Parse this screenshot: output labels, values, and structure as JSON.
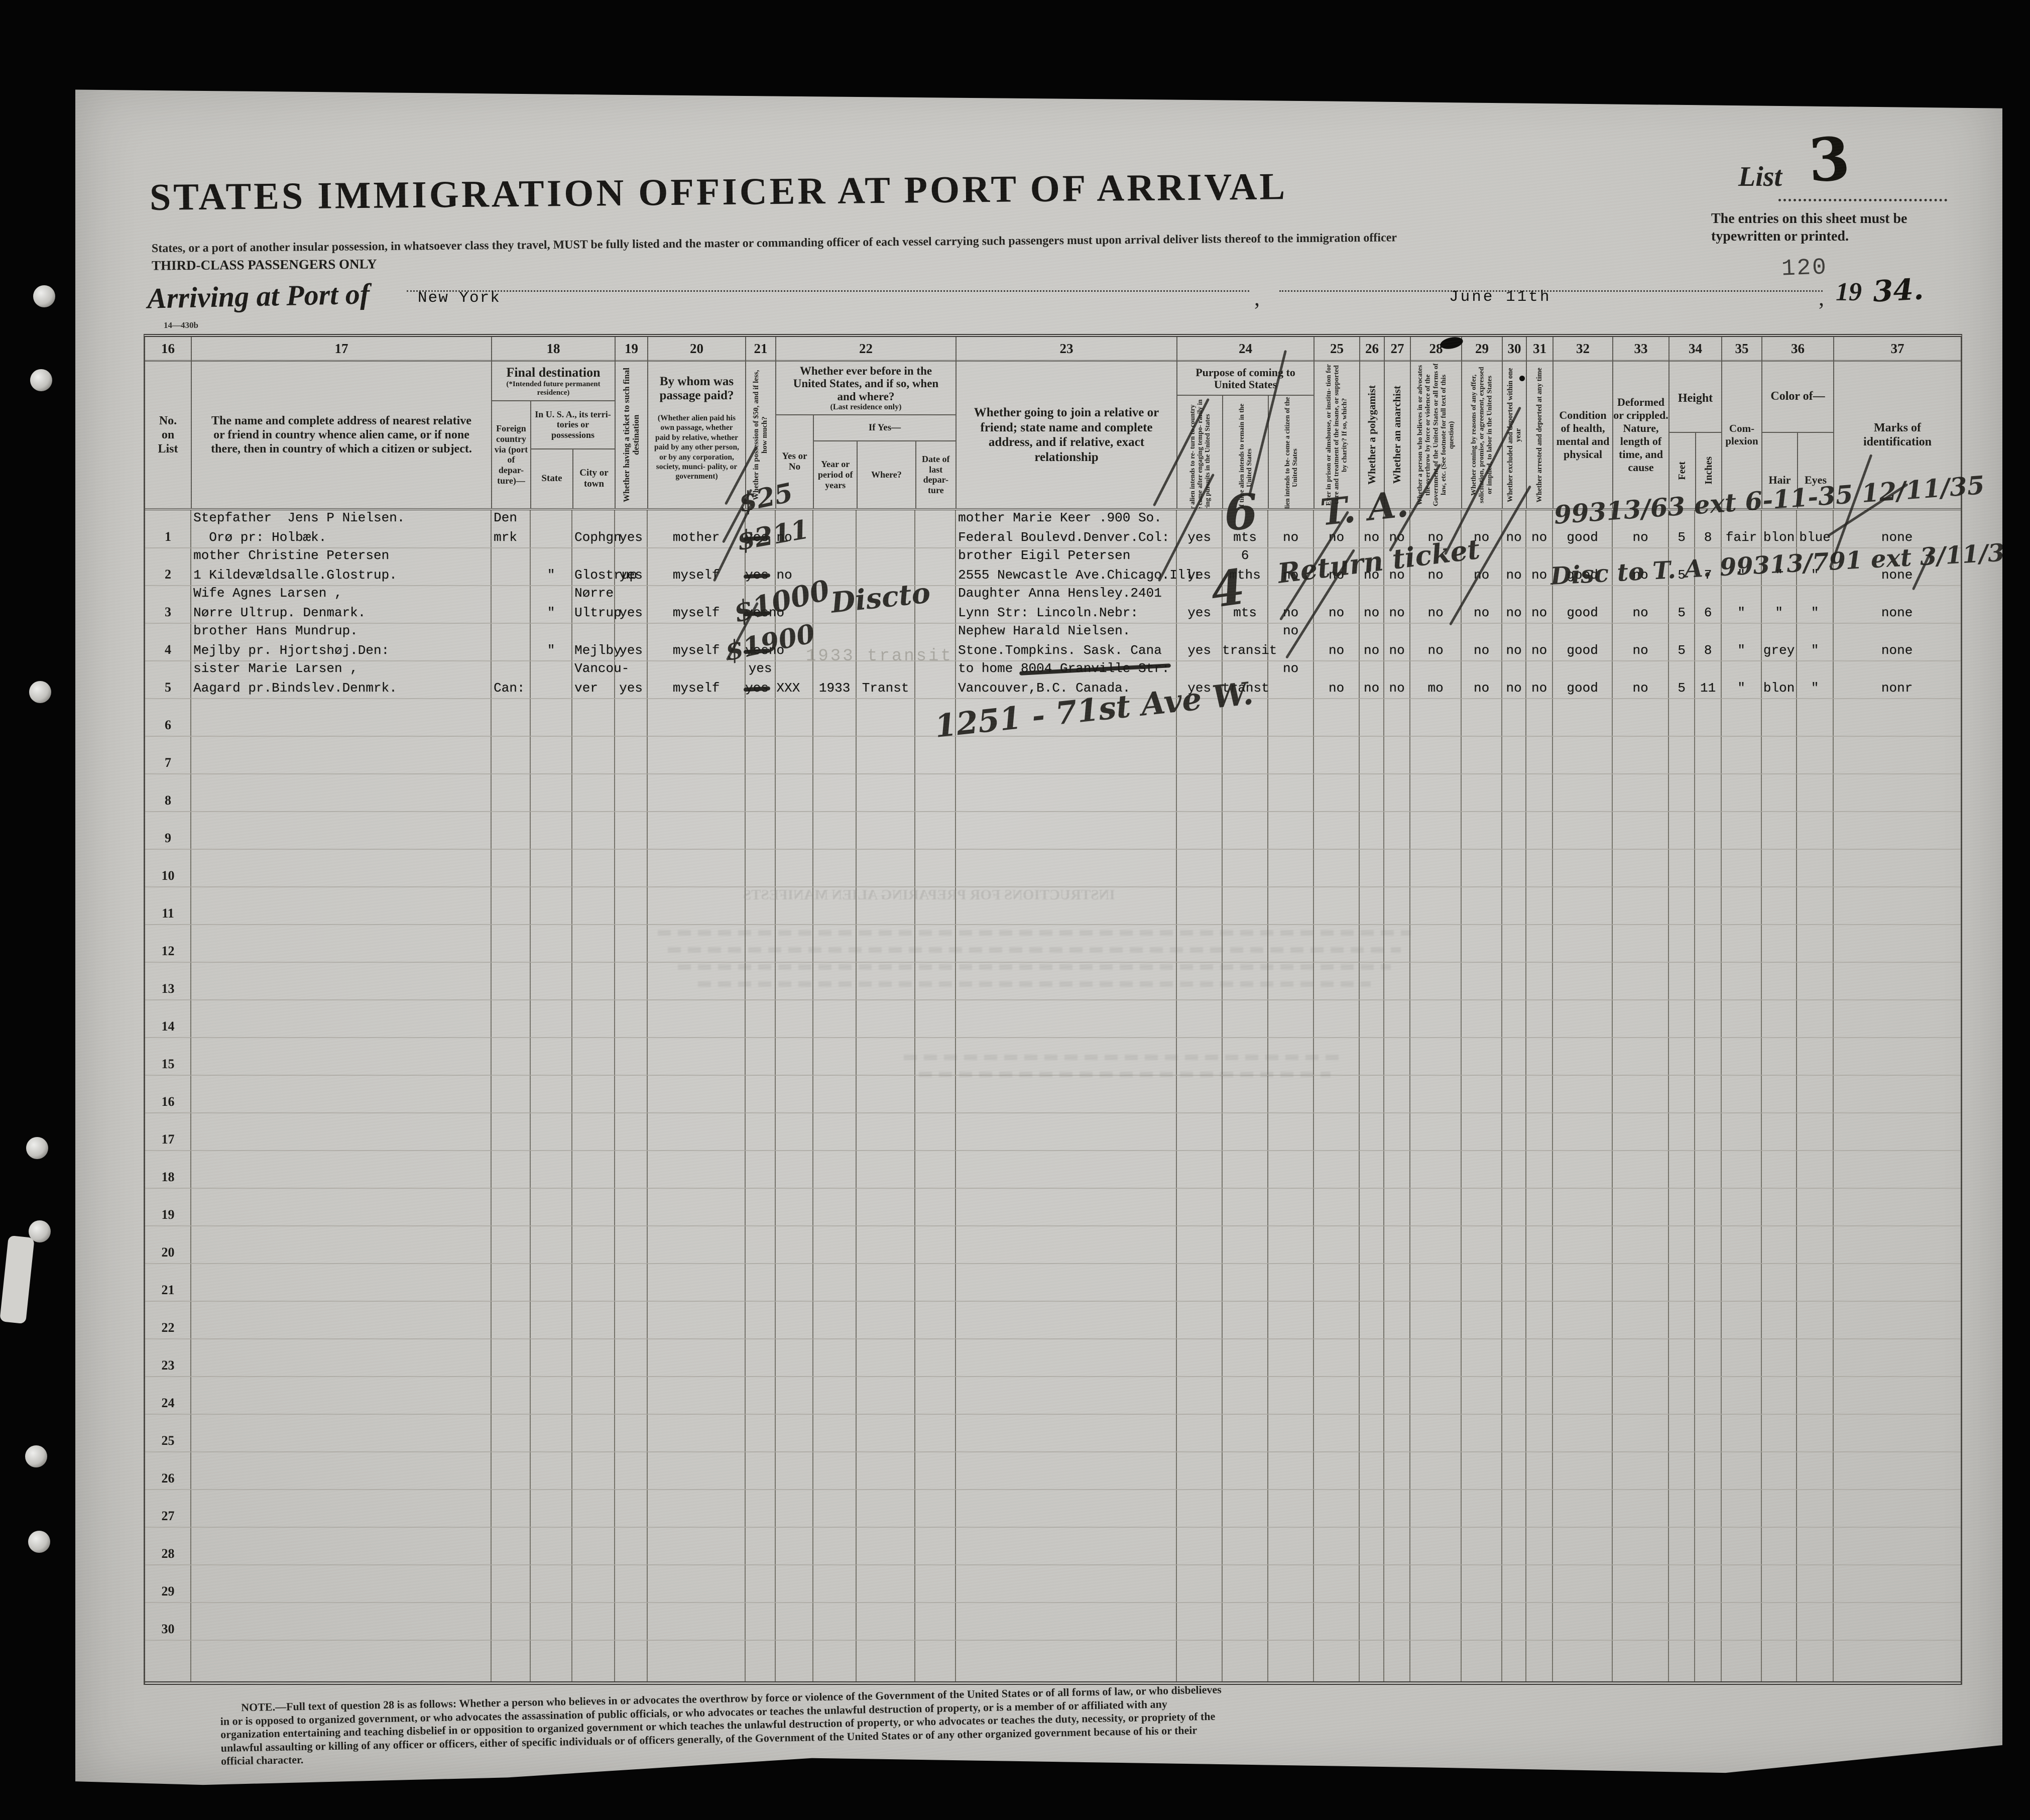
{
  "page": {
    "title": "STATES IMMIGRATION OFFICER AT PORT OF ARRIVAL",
    "subtitle": "States, or a port of another insular possession, in whatsoever class they travel, MUST be fully listed and the master or commanding officer of each vessel carrying such passengers must upon arrival deliver lists thereof to the immigration officer",
    "subtitle2": "THIRD-CLASS PASSENGERS ONLY",
    "list_label": "List",
    "list_number": "3",
    "entries_note": "The entries on this sheet must be typewritten or printed.",
    "stamp_number": "120",
    "arriving_label": "Arriving at Port of",
    "port_value": "New York",
    "date_value": "June 11th",
    "comma": ",",
    "year_printed": "19",
    "year_value": "34.",
    "form_number_top": "14—430b",
    "form_number_bottom": "14—430",
    "bleedthrough": "INSTRUCTIONS FOR PREPARING ALIEN MANIFESTS",
    "footnote": "NOTE.—Full text of question 28 is as follows: Whether a person who believes in or advocates the overthrow by force or violence of the Government of the United States or of all forms of law, or who disbelieves in or is opposed to organized government, or who advocates the assassination of public officials, or who advocates or teaches the unlawful destruction of property, or is a member of or affiliated with any organization entertaining and teaching disbelief in or opposition to organized government or which teaches the unlawful destruction of property, or who advocates or teaches the duty, necessity, or propriety of the unlawful assaulting or killing of any officer or officers, either of specific individuals or of officers generally, of the Government of the United States or of any other organized government because of his or their official character."
  },
  "col_numbers": [
    "16",
    "17",
    "18",
    "19",
    "20",
    "21",
    "22",
    "23",
    "24",
    "25",
    "26",
    "27",
    "28",
    "29",
    "30",
    "31",
    "32",
    "33",
    "34",
    "35",
    "36",
    "37"
  ],
  "headers": {
    "c16": "No.\non\nList",
    "c17": "The name and complete address of nearest relative or friend in country whence alien came, or if none there, then in country of which a citizen or subject.",
    "c18_title": "Final destination",
    "c18_sub": "(*Intended future permanent residence)",
    "c18_foreign": "Foreign country via (port of depar- ture)—",
    "c18_usa": "In U. S. A., its terri- tories or possessions",
    "c18_state": "State",
    "c18_city": "City or town",
    "c19": "Whether having a ticket to such final destination",
    "c20_title": "By whom was passage paid?",
    "c20_sub": "(Whether alien paid his own passage, whether paid by relative, whether paid by any other person, or by any corporation, society, munci- pality, or government)",
    "c21": "Whether in possession of $50, and if less, how much?",
    "c22_title": "Whether ever before in the United States, and if so, when and where?",
    "c22_sub": "(Last residence only)",
    "c22_yesno": "Yes or No",
    "c22_ifyes": "If Yes—",
    "c22_year": "Year or period of years",
    "c22_where": "Where?",
    "c22_date": "Date of last depar- ture",
    "c23": "Whether going to join a relative or friend; state name and complete address, and if relative, exact relationship",
    "c24_title": "Purpose of coming to United States",
    "c24_a": "Whether alien intends to re- turn to country whence he came after engaging tempo- rarily in laboring pursuits in the United States",
    "c24_b": "Length of time alien intends to remain in the United States",
    "c24_c": "Whether alien intends to be- come a citizen of the United States",
    "c25": "Ever in prison or almshouse, or institu- tion for care and treatment of the insane, or supported by charity? If so, which?",
    "c26": "Whether a polygamist",
    "c27": "Whether an anarchist",
    "c28": "Whether a person who believes in or advocates the overthrow by force or violence of the Government of the United States or all forms of law, etc. (See footnote for full text of this question)",
    "c29": "Whether coming by reasons of any offer, solicitation, promise, or agreement, expressed or implied, to labor in the United States",
    "c30": "Whether excluded and deported within one year",
    "c31": "Whether arrested and deported at any time",
    "c32": "Condition of health, mental and physical",
    "c33": "Deformed or crippled. Nature, length of time, and cause",
    "c34_title": "Height",
    "c34_feet": "Feet",
    "c34_inches": "Inches",
    "c35": "Com-\nplexion",
    "c36_title": "Color of—",
    "c36_hair": "Hair",
    "c36_eyes": "Eyes",
    "c37": "Marks of identification"
  },
  "row_numbers": [
    "1",
    "2",
    "3",
    "4",
    "5",
    "6",
    "7",
    "8",
    "9",
    "10",
    "11",
    "12",
    "13",
    "14",
    "15",
    "16",
    "17",
    "18",
    "19",
    "20",
    "21",
    "22",
    "23",
    "24",
    "25",
    "26",
    "27",
    "28",
    "29",
    "30"
  ],
  "cells": [
    [
      1,
      "c17",
      "Stepfather  Jens P Nielsen.",
      "  Orø pr: Holbæk."
    ],
    [
      2,
      "c17",
      "mother Christine Petersen",
      "1 Kildevældsalle.Glostrup."
    ],
    [
      3,
      "c17",
      "Wife Agnes Larsen ,",
      "Nørre Ultrup. Denmark."
    ],
    [
      4,
      "c17",
      "brother Hans Mundrup.",
      "Mejlby pr. Hjortshøj.Den:"
    ],
    [
      5,
      "c17",
      "sister Marie Larsen ,",
      "Aagard pr.Bindslev.Denmrk."
    ],
    [
      1,
      "c18f",
      "Den",
      "mrk"
    ],
    [
      5,
      "c18f",
      "",
      "Can:"
    ],
    [
      2,
      "c18s",
      "",
      "\""
    ],
    [
      3,
      "c18s",
      "",
      "\""
    ],
    [
      4,
      "c18s",
      "",
      "\""
    ],
    [
      1,
      "c18c",
      "",
      "Cophgn"
    ],
    [
      2,
      "c18c",
      "",
      "Glostrup"
    ],
    [
      3,
      "c18c",
      "Nørre",
      "Ultrup"
    ],
    [
      4,
      "c18c",
      "",
      "Mejlby"
    ],
    [
      5,
      "c18c",
      "Vancou-",
      "ver"
    ],
    [
      1,
      "c19",
      "",
      "yes"
    ],
    [
      2,
      "c19",
      "",
      "yes"
    ],
    [
      3,
      "c19",
      "",
      "yes"
    ],
    [
      4,
      "c19",
      "",
      "yes"
    ],
    [
      5,
      "c19",
      "",
      "yes"
    ],
    [
      1,
      "c20",
      "",
      "mother"
    ],
    [
      2,
      "c20",
      "",
      "myself"
    ],
    [
      3,
      "c20",
      "",
      "myself"
    ],
    [
      4,
      "c20",
      "",
      "myself"
    ],
    [
      5,
      "c20",
      "",
      "myself"
    ],
    [
      1,
      "c21",
      "",
      "~yes~ no"
    ],
    [
      2,
      "c21",
      "",
      "~yes~ no"
    ],
    [
      3,
      "c21",
      "",
      "~yes~no"
    ],
    [
      4,
      "c21",
      "",
      "~yes~no"
    ],
    [
      5,
      "c21",
      "yes",
      "~yes~ XXX"
    ],
    [
      5,
      "c22b",
      "",
      "1933"
    ],
    [
      5,
      "c22c",
      "",
      "Transt"
    ],
    [
      1,
      "c23",
      "mother Marie Keer .900 So.",
      "Federal Boulevd.Denver.Col:"
    ],
    [
      2,
      "c23",
      "brother Eigil Petersen",
      "2555 Newcastle Ave.Chicago.Ill:"
    ],
    [
      3,
      "c23",
      "Daughter Anna Hensley.2401",
      "Lynn Str: Lincoln.Nebr:"
    ],
    [
      4,
      "c23",
      "Nephew Harald Nielsen.",
      "Stone.Tompkins. Sask. Cana"
    ],
    [
      5,
      "c23",
      "to home ~8004 Granville Str:~",
      "Vancouver,B.C. Canada."
    ],
    [
      1,
      "c24a",
      "",
      "yes"
    ],
    [
      2,
      "c24a",
      "",
      "yes"
    ],
    [
      3,
      "c24a",
      "",
      "yes"
    ],
    [
      4,
      "c24a",
      "",
      "yes"
    ],
    [
      5,
      "c24a",
      "",
      "yes"
    ],
    [
      1,
      "c24b",
      "",
      "mts"
    ],
    [
      2,
      "c24b",
      "6",
      "mths"
    ],
    [
      3,
      "c24b",
      "",
      "mts"
    ],
    [
      4,
      "c24b",
      "",
      "transit"
    ],
    [
      5,
      "c24b",
      "",
      "transt"
    ],
    [
      1,
      "c24c",
      "",
      "no"
    ],
    [
      2,
      "c24c",
      "",
      "no"
    ],
    [
      3,
      "c24c",
      "",
      "no"
    ],
    [
      4,
      "c24c",
      "no",
      ""
    ],
    [
      5,
      "c24c",
      "no",
      ""
    ],
    [
      1,
      "c25",
      "",
      "no"
    ],
    [
      2,
      "c25",
      "",
      "no"
    ],
    [
      3,
      "c25",
      "",
      "no"
    ],
    [
      4,
      "c25",
      "",
      "no"
    ],
    [
      5,
      "c25",
      "",
      "no"
    ],
    [
      1,
      "c26",
      "",
      "no"
    ],
    [
      2,
      "c26",
      "",
      "no"
    ],
    [
      3,
      "c26",
      "",
      "no"
    ],
    [
      4,
      "c26",
      "",
      "no"
    ],
    [
      5,
      "c26",
      "",
      "no"
    ],
    [
      1,
      "c27",
      "",
      "no"
    ],
    [
      2,
      "c27",
      "",
      "no"
    ],
    [
      3,
      "c27",
      "",
      "no"
    ],
    [
      4,
      "c27",
      "",
      "no"
    ],
    [
      5,
      "c27",
      "",
      "no"
    ],
    [
      1,
      "c28",
      "",
      "no"
    ],
    [
      2,
      "c28",
      "",
      "no"
    ],
    [
      3,
      "c28",
      "",
      "no"
    ],
    [
      4,
      "c28",
      "",
      "no"
    ],
    [
      5,
      "c28",
      "",
      "mo"
    ],
    [
      1,
      "c29",
      "",
      "no"
    ],
    [
      2,
      "c29",
      "",
      "no"
    ],
    [
      3,
      "c29",
      "",
      "no"
    ],
    [
      4,
      "c29",
      "",
      "no"
    ],
    [
      5,
      "c29",
      "",
      "no"
    ],
    [
      1,
      "c30",
      "",
      "no"
    ],
    [
      2,
      "c30",
      "",
      "no"
    ],
    [
      3,
      "c30",
      "",
      "no"
    ],
    [
      4,
      "c30",
      "",
      "no"
    ],
    [
      5,
      "c30",
      "",
      "no"
    ],
    [
      1,
      "c31",
      "",
      "no"
    ],
    [
      2,
      "c31",
      "",
      "no"
    ],
    [
      3,
      "c31",
      "",
      "no"
    ],
    [
      4,
      "c31",
      "",
      "no"
    ],
    [
      5,
      "c31",
      "",
      "no"
    ],
    [
      1,
      "c32",
      "",
      "good"
    ],
    [
      2,
      "c32",
      "",
      "good"
    ],
    [
      3,
      "c32",
      "",
      "good"
    ],
    [
      4,
      "c32",
      "",
      "good"
    ],
    [
      5,
      "c32",
      "",
      "good"
    ],
    [
      1,
      "c33",
      "",
      "no"
    ],
    [
      2,
      "c33",
      "",
      "no"
    ],
    [
      3,
      "c33",
      "",
      "no"
    ],
    [
      4,
      "c33",
      "",
      "no"
    ],
    [
      5,
      "c33",
      "",
      "no"
    ],
    [
      1,
      "c34f",
      "",
      "5"
    ],
    [
      2,
      "c34f",
      "",
      "5"
    ],
    [
      3,
      "c34f",
      "",
      "5"
    ],
    [
      4,
      "c34f",
      "",
      "5"
    ],
    [
      5,
      "c34f",
      "",
      "5"
    ],
    [
      1,
      "c34i",
      "",
      "8"
    ],
    [
      2,
      "c34i",
      "",
      "7"
    ],
    [
      3,
      "c34i",
      "",
      "6"
    ],
    [
      4,
      "c34i",
      "",
      "8"
    ],
    [
      5,
      "c34i",
      "",
      "11"
    ],
    [
      1,
      "c35",
      "",
      "fair"
    ],
    [
      2,
      "c35",
      "",
      "\""
    ],
    [
      3,
      "c35",
      "",
      "\""
    ],
    [
      4,
      "c35",
      "",
      "\""
    ],
    [
      5,
      "c35",
      "",
      "\""
    ],
    [
      1,
      "c36h",
      "",
      "blon"
    ],
    [
      2,
      "c36h",
      "",
      "\""
    ],
    [
      3,
      "c36h",
      "",
      "\""
    ],
    [
      4,
      "c36h",
      "",
      "grey"
    ],
    [
      5,
      "c36h",
      "",
      "blon"
    ],
    [
      1,
      "c36e",
      "",
      "blue"
    ],
    [
      2,
      "c36e",
      "",
      "\""
    ],
    [
      3,
      "c36e",
      "",
      "\""
    ],
    [
      4,
      "c36e",
      "",
      "\""
    ],
    [
      5,
      "c36e",
      "",
      "\""
    ],
    [
      1,
      "c37",
      "",
      "none"
    ],
    [
      2,
      "c37",
      "",
      "none"
    ],
    [
      3,
      "c37",
      "",
      "none"
    ],
    [
      4,
      "c37",
      "",
      "none"
    ],
    [
      5,
      "c37",
      "",
      "nonr"
    ]
  ],
  "handwritten": {
    "amount_1": "$25",
    "amount_2": "$211",
    "amount_3": "$1000",
    "amount_4": "$1900",
    "discto": "Discto",
    "big_6": "6",
    "big_4": "4",
    "ta": "T. A.",
    "return_ticket": "Return ticket",
    "file_line_1": "99313/63 ext   6-11-35  12/11/35",
    "file_line_2": "Disc to T. A.  99313/791 ext 3/11/35",
    "address": "1251 - 71st Ave W."
  },
  "stamps": {
    "faint_row4": "1933 transit"
  }
}
